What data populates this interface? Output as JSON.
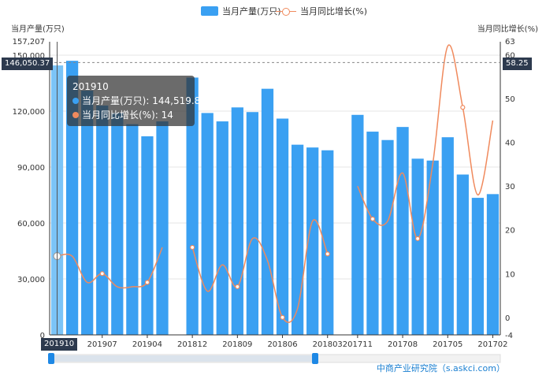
{
  "legend": {
    "bar_label": "当月产量(万只)",
    "line_label": "当月同比增长(%)"
  },
  "axis": {
    "left_title": "当月产量(万只)",
    "right_title": "当月同比增长(%)",
    "left_max_label": "157,207",
    "right_top_label": "63"
  },
  "pointer": {
    "left_value": "146,050.37",
    "right_value": "58.25",
    "x_label": "201910"
  },
  "tooltip": {
    "title": "201910",
    "bar_line": "当月产量(万只): 144,519.8",
    "line_line": "当月同比增长(%): 14"
  },
  "watermark": "中商产业研究院（s.askci.com）",
  "colors": {
    "bar": "#3aa0f2",
    "line": "#f08a5d",
    "highlight_bar": "#7cc4f7"
  },
  "chart_data": {
    "type": "bar",
    "title": "",
    "categories": [
      "201910",
      "201909",
      "201908",
      "201907",
      "201906",
      "201905",
      "201904",
      "201903",
      "201902",
      "201812",
      "201811",
      "201810",
      "201809",
      "201808",
      "201807",
      "201806",
      "201805",
      "201804",
      "201803",
      "201802",
      "201711",
      "201710",
      "201709",
      "201708",
      "201707",
      "201706",
      "201705",
      "201704",
      "201703",
      "201702"
    ],
    "x_tick_labels": [
      "201910",
      "201907",
      "201904",
      "201812",
      "201809",
      "201806",
      "201803",
      "201711",
      "201708",
      "201705",
      "201702"
    ],
    "series": [
      {
        "name": "当月产量(万只)",
        "axis": "left",
        "type": "bar",
        "values": [
          144520,
          147000,
          131000,
          123000,
          119000,
          113000,
          106500,
          114500,
          null,
          138000,
          119000,
          114500,
          122000,
          119500,
          132000,
          116000,
          102000,
          100500,
          99000,
          null,
          118000,
          109000,
          104500,
          111500,
          94500,
          93500,
          106000,
          86000,
          73500,
          75500
        ]
      },
      {
        "name": "当月同比增长(%)",
        "axis": "right",
        "type": "line",
        "values": [
          14,
          14,
          8,
          10,
          7,
          7,
          8,
          16,
          null,
          16,
          6,
          12,
          7,
          18,
          13,
          0,
          2,
          22,
          14.5,
          null,
          30,
          22.5,
          22,
          33,
          18,
          35,
          62,
          48,
          28,
          45
        ]
      }
    ],
    "y_left": {
      "min": 0,
      "max": 157207,
      "ticks": [
        0,
        30000,
        60000,
        90000,
        120000,
        150000
      ],
      "tick_labels": [
        "0",
        "30,000",
        "60,000",
        "90,000",
        "120,000",
        "150,000"
      ]
    },
    "y_right": {
      "min": -4,
      "max": 63,
      "ticks": [
        -4,
        0,
        10,
        20,
        30,
        40,
        50,
        60
      ],
      "tick_labels": [
        "-4",
        "0",
        "10",
        "20",
        "30",
        "40",
        "50",
        "60"
      ]
    },
    "legend_position": "top-center",
    "grid": true
  }
}
